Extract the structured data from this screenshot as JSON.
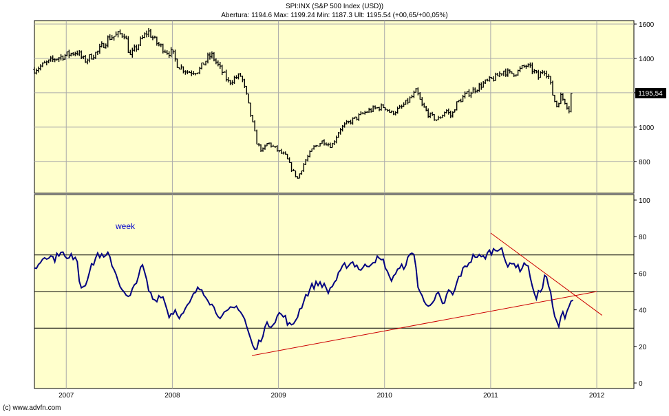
{
  "header": {
    "title": "SPI:INX (S&P 500 Index (USD))",
    "ohlc_line": "Abertura: 1194.6 Max: 1199.24 Min: 1187.3 Ult: 1195.54 (+00,65/+00,05%)"
  },
  "footer": {
    "credit": "(c) www.advfn.com"
  },
  "colors": {
    "plot_background": "#ffffcc",
    "price_bars": "#000000",
    "oscillator_line": "#000080",
    "trendline": "#cc0000",
    "grid": "#aaaaaa",
    "label_box": "#000000",
    "label_box_text": "#ffffff"
  },
  "chart_data": [
    {
      "type": "ohlc",
      "title": "SPI:INX (S&P 500 Index (USD))",
      "x_range": [
        2006.7,
        2012.35
      ],
      "x_ticks": [
        "2007",
        "2008",
        "2009",
        "2010",
        "2011",
        "2012"
      ],
      "y_ticks": [
        "800",
        "1000",
        "1200",
        "1400",
        "1600"
      ],
      "ylim": [
        615,
        1620
      ],
      "last_value_label": "1195,54",
      "last_value": 1195.54,
      "grid": true,
      "weekly_close_knots": [
        [
          2006.7,
          1335
        ],
        [
          2006.9,
          1400
        ],
        [
          2007.0,
          1420
        ],
        [
          2007.1,
          1440
        ],
        [
          2007.17,
          1385
        ],
        [
          2007.3,
          1440
        ],
        [
          2007.4,
          1520
        ],
        [
          2007.5,
          1540
        ],
        [
          2007.55,
          1545
        ],
        [
          2007.6,
          1410
        ],
        [
          2007.7,
          1500
        ],
        [
          2007.77,
          1560
        ],
        [
          2007.85,
          1490
        ],
        [
          2007.95,
          1440
        ],
        [
          2008.0,
          1430
        ],
        [
          2008.05,
          1360
        ],
        [
          2008.15,
          1320
        ],
        [
          2008.25,
          1330
        ],
        [
          2008.33,
          1400
        ],
        [
          2008.37,
          1420
        ],
        [
          2008.45,
          1340
        ],
        [
          2008.53,
          1260
        ],
        [
          2008.6,
          1290
        ],
        [
          2008.65,
          1300
        ],
        [
          2008.7,
          1180
        ],
        [
          2008.75,
          1040
        ],
        [
          2008.8,
          900
        ],
        [
          2008.85,
          860
        ],
        [
          2008.9,
          910
        ],
        [
          2009.0,
          860
        ],
        [
          2009.07,
          830
        ],
        [
          2009.12,
          760
        ],
        [
          2009.18,
          700
        ],
        [
          2009.25,
          800
        ],
        [
          2009.33,
          880
        ],
        [
          2009.42,
          920
        ],
        [
          2009.5,
          890
        ],
        [
          2009.58,
          990
        ],
        [
          2009.67,
          1030
        ],
        [
          2009.75,
          1060
        ],
        [
          2009.83,
          1090
        ],
        [
          2009.92,
          1110
        ],
        [
          2010.0,
          1120
        ],
        [
          2010.06,
          1080
        ],
        [
          2010.15,
          1110
        ],
        [
          2010.25,
          1170
        ],
        [
          2010.3,
          1210
        ],
        [
          2010.35,
          1130
        ],
        [
          2010.42,
          1070
        ],
        [
          2010.5,
          1040
        ],
        [
          2010.58,
          1100
        ],
        [
          2010.63,
          1060
        ],
        [
          2010.67,
          1130
        ],
        [
          2010.75,
          1180
        ],
        [
          2010.85,
          1220
        ],
        [
          2010.95,
          1260
        ],
        [
          2011.05,
          1290
        ],
        [
          2011.12,
          1330
        ],
        [
          2011.18,
          1310
        ],
        [
          2011.25,
          1320
        ],
        [
          2011.33,
          1360
        ],
        [
          2011.4,
          1330
        ],
        [
          2011.45,
          1290
        ],
        [
          2011.5,
          1340
        ],
        [
          2011.55,
          1290
        ],
        [
          2011.58,
          1200
        ],
        [
          2011.62,
          1120
        ],
        [
          2011.66,
          1180
        ],
        [
          2011.7,
          1150
        ],
        [
          2011.74,
          1100
        ],
        [
          2011.77,
          1195
        ]
      ]
    },
    {
      "type": "line",
      "annotation": "week",
      "x_range": [
        2006.7,
        2012.35
      ],
      "x_ticks": [
        "2007",
        "2008",
        "2009",
        "2010",
        "2011",
        "2012"
      ],
      "y_ticks": [
        "0",
        "20",
        "40",
        "60",
        "80",
        "100"
      ],
      "ylim": [
        -3,
        103
      ],
      "reference_lines": [
        30,
        50,
        70
      ],
      "series": [
        {
          "values_knots": [
            [
              2006.7,
              62
            ],
            [
              2006.8,
              70
            ],
            [
              2006.9,
              68
            ],
            [
              2006.95,
              73
            ],
            [
              2007.0,
              67
            ],
            [
              2007.05,
              69
            ],
            [
              2007.1,
              70
            ],
            [
              2007.13,
              52
            ],
            [
              2007.18,
              55
            ],
            [
              2007.25,
              65
            ],
            [
              2007.3,
              71
            ],
            [
              2007.35,
              68
            ],
            [
              2007.4,
              70
            ],
            [
              2007.48,
              58
            ],
            [
              2007.55,
              48
            ],
            [
              2007.6,
              46
            ],
            [
              2007.65,
              55
            ],
            [
              2007.72,
              64
            ],
            [
              2007.78,
              50
            ],
            [
              2007.83,
              45
            ],
            [
              2007.9,
              49
            ],
            [
              2007.97,
              37
            ],
            [
              2008.03,
              40
            ],
            [
              2008.08,
              36
            ],
            [
              2008.15,
              42
            ],
            [
              2008.22,
              50
            ],
            [
              2008.27,
              52
            ],
            [
              2008.32,
              48
            ],
            [
              2008.4,
              40
            ],
            [
              2008.47,
              36
            ],
            [
              2008.55,
              40
            ],
            [
              2008.62,
              42
            ],
            [
              2008.68,
              35
            ],
            [
              2008.73,
              25
            ],
            [
              2008.78,
              17
            ],
            [
              2008.83,
              24
            ],
            [
              2008.88,
              31
            ],
            [
              2008.95,
              33
            ],
            [
              2009.0,
              38
            ],
            [
              2009.06,
              36
            ],
            [
              2009.12,
              30
            ],
            [
              2009.18,
              37
            ],
            [
              2009.25,
              47
            ],
            [
              2009.32,
              53
            ],
            [
              2009.4,
              55
            ],
            [
              2009.47,
              50
            ],
            [
              2009.55,
              57
            ],
            [
              2009.62,
              64
            ],
            [
              2009.7,
              66
            ],
            [
              2009.78,
              62
            ],
            [
              2009.85,
              65
            ],
            [
              2009.92,
              68
            ],
            [
              2010.0,
              66
            ],
            [
              2010.05,
              56
            ],
            [
              2010.1,
              60
            ],
            [
              2010.18,
              64
            ],
            [
              2010.25,
              70
            ],
            [
              2010.28,
              72
            ],
            [
              2010.32,
              50
            ],
            [
              2010.38,
              45
            ],
            [
              2010.45,
              42
            ],
            [
              2010.5,
              49
            ],
            [
              2010.55,
              42
            ],
            [
              2010.6,
              50
            ],
            [
              2010.65,
              48
            ],
            [
              2010.7,
              58
            ],
            [
              2010.78,
              65
            ],
            [
              2010.85,
              70
            ],
            [
              2010.92,
              68
            ],
            [
              2011.0,
              72
            ],
            [
              2011.06,
              73
            ],
            [
              2011.1,
              76
            ],
            [
              2011.15,
              62
            ],
            [
              2011.2,
              67
            ],
            [
              2011.27,
              62
            ],
            [
              2011.33,
              66
            ],
            [
              2011.38,
              58
            ],
            [
              2011.42,
              45
            ],
            [
              2011.48,
              52
            ],
            [
              2011.52,
              60
            ],
            [
              2011.56,
              50
            ],
            [
              2011.6,
              36
            ],
            [
              2011.64,
              31
            ],
            [
              2011.68,
              38
            ],
            [
              2011.71,
              37
            ],
            [
              2011.74,
              44
            ],
            [
              2011.78,
              46
            ]
          ]
        }
      ],
      "trendlines": [
        {
          "from": [
            2008.75,
            15
          ],
          "to": [
            2012.0,
            50
          ]
        },
        {
          "from": [
            2011.0,
            82
          ],
          "to": [
            2012.05,
            37
          ]
        }
      ]
    }
  ]
}
